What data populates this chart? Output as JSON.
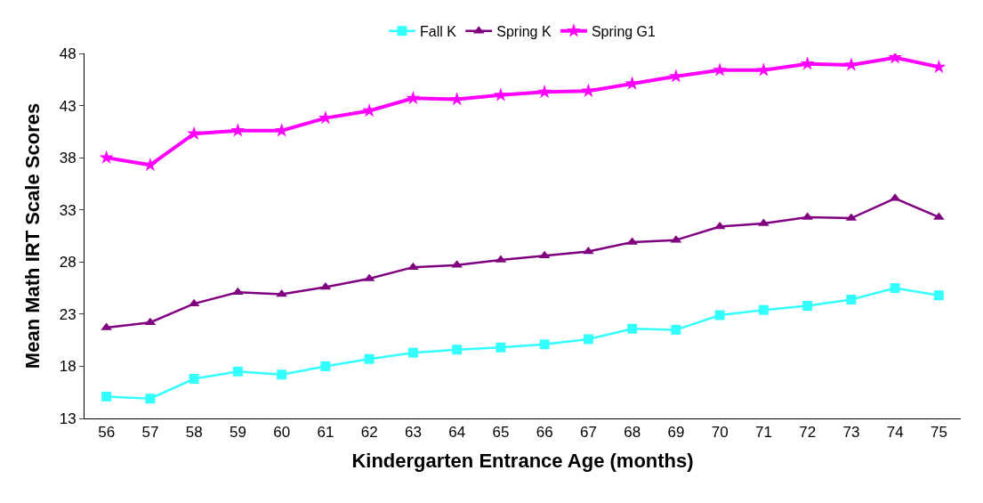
{
  "chart_data": {
    "type": "line",
    "xlabel": "Kindergarten Entrance Age (months)",
    "ylabel": "Mean Math IRT Scale Scores",
    "categories": [
      "56",
      "57",
      "58",
      "59",
      "60",
      "61",
      "62",
      "63",
      "64",
      "65",
      "66",
      "67",
      "68",
      "69",
      "70",
      "71",
      "72",
      "73",
      "74",
      "75"
    ],
    "series": [
      {
        "name": "Fall K",
        "color": "#33ffff",
        "marker": "square",
        "values": [
          15.1,
          14.9,
          16.8,
          17.5,
          17.2,
          18.0,
          18.7,
          19.3,
          19.6,
          19.8,
          20.1,
          20.6,
          21.6,
          21.5,
          22.9,
          23.4,
          23.8,
          24.4,
          25.5,
          24.8
        ]
      },
      {
        "name": "Spring K",
        "color": "#800080",
        "marker": "triangle",
        "values": [
          21.7,
          22.2,
          24.0,
          25.1,
          24.9,
          25.6,
          26.4,
          27.5,
          27.7,
          28.2,
          28.6,
          29.0,
          29.9,
          30.1,
          31.4,
          31.7,
          32.3,
          32.2,
          34.1,
          32.3
        ]
      },
      {
        "name": "Spring G1",
        "color": "#ff00ff",
        "marker": "star",
        "values": [
          38.0,
          37.3,
          40.3,
          40.6,
          40.6,
          41.8,
          42.5,
          43.7,
          43.6,
          44.0,
          44.3,
          44.4,
          45.1,
          45.8,
          46.4,
          46.4,
          47.0,
          46.9,
          47.6,
          46.7
        ]
      }
    ],
    "ylim": [
      13,
      48
    ],
    "yticks": [
      13,
      18,
      23,
      28,
      33,
      38,
      43,
      48
    ],
    "grid": false,
    "legend": "top",
    "line_style": "solid"
  }
}
